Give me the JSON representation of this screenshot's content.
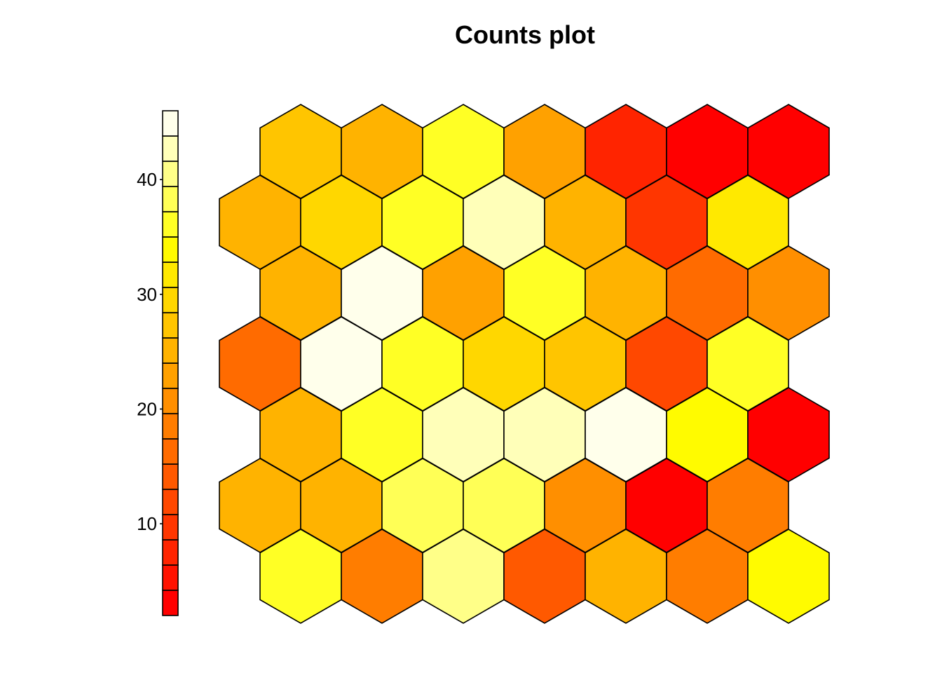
{
  "chart_data": {
    "type": "heatmap",
    "subtype": "hexagonal-som-counts",
    "title": "Counts plot",
    "grid": {
      "rows": 7,
      "cols": 7,
      "topology": "hexagonal"
    },
    "color_scale": {
      "palette": "heat",
      "range": [
        2,
        46
      ],
      "levels": 20,
      "ticks": [
        10,
        20,
        30,
        40
      ]
    },
    "values": [
      [
        28,
        26,
        36,
        23,
        8,
        2,
        2
      ],
      [
        25,
        30,
        36,
        42,
        26,
        10,
        31
      ],
      [
        26,
        46,
        23,
        36,
        24,
        17,
        20
      ],
      [
        17,
        46,
        36,
        30,
        28,
        12,
        36
      ],
      [
        24,
        36,
        42,
        43,
        46,
        34,
        2
      ],
      [
        24,
        24,
        38,
        38,
        20,
        2,
        18
      ],
      [
        36,
        18,
        40,
        14,
        24,
        18,
        34
      ]
    ]
  }
}
